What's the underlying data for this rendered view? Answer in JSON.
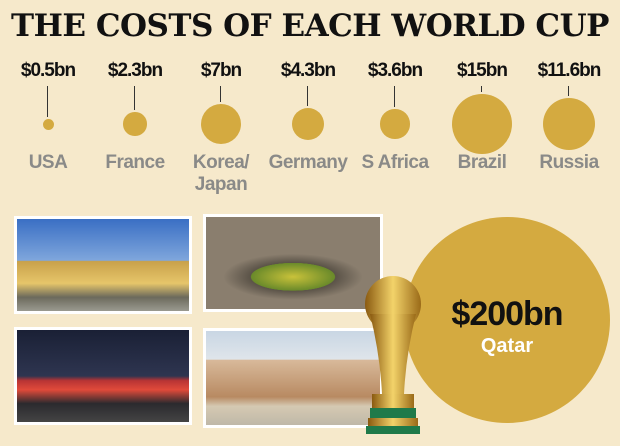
{
  "title": "THE COSTS OF EACH WORLD CUP",
  "chart_data": {
    "type": "bubble",
    "title": "THE COSTS OF EACH WORLD CUP",
    "unit": "$bn",
    "categories": [
      "USA",
      "France",
      "Korea/ Japan",
      "Germany",
      "S Africa",
      "Brazil",
      "Russia",
      "Qatar"
    ],
    "values": [
      0.5,
      2.3,
      7,
      4.3,
      3.6,
      15,
      11.6,
      200
    ],
    "labels": [
      "$0.5bn",
      "$2.3bn",
      "$7bn",
      "$4.3bn",
      "$3.6bn",
      "$15bn",
      "$11.6bn",
      "$200bn"
    ],
    "bubble_color": "#d4aa40"
  },
  "colors": {
    "background": "#f6e9cb",
    "bubble": "#d4aa40",
    "name_text": "#8a8a88"
  }
}
